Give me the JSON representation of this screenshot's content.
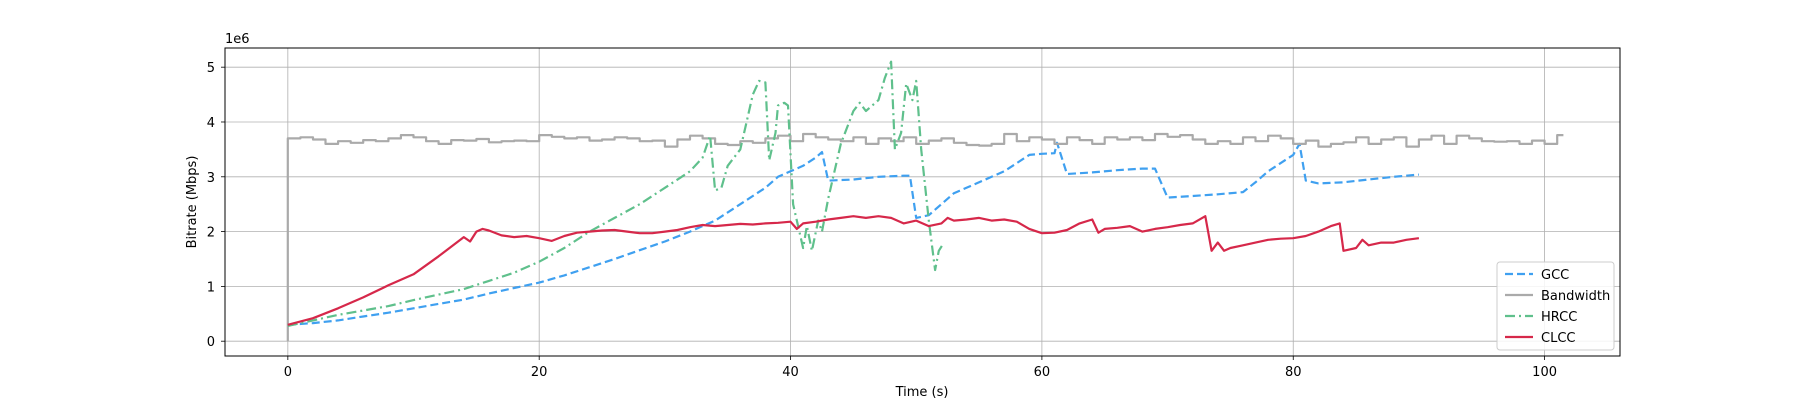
{
  "chart_data": {
    "type": "line",
    "xlabel": "Time (s)",
    "ylabel": "Bitrate (Mbps)",
    "y_multiplier_label": "1e6",
    "xlim": [
      -5,
      106
    ],
    "ylim": [
      -0.27,
      5.35
    ],
    "xticks": [
      0,
      20,
      40,
      60,
      80,
      100
    ],
    "yticks": [
      0,
      1,
      2,
      3,
      4,
      5
    ],
    "xtick_labels": [
      "0",
      "20",
      "40",
      "60",
      "80",
      "100"
    ],
    "ytick_labels": [
      "0",
      "1",
      "2",
      "3",
      "4",
      "5"
    ],
    "grid": true,
    "legend_position": "lower-right",
    "series": [
      {
        "name": "GCC",
        "color": "#3fa0f0",
        "style": "dashed",
        "points": [
          [
            0,
            0.3
          ],
          [
            2,
            0.33
          ],
          [
            4,
            0.38
          ],
          [
            6,
            0.45
          ],
          [
            8,
            0.52
          ],
          [
            10,
            0.6
          ],
          [
            12,
            0.68
          ],
          [
            14,
            0.76
          ],
          [
            16,
            0.87
          ],
          [
            18,
            0.97
          ],
          [
            20,
            1.07
          ],
          [
            22,
            1.2
          ],
          [
            24,
            1.35
          ],
          [
            26,
            1.5
          ],
          [
            28,
            1.66
          ],
          [
            30,
            1.82
          ],
          [
            32,
            2.0
          ],
          [
            34,
            2.2
          ],
          [
            35,
            2.35
          ],
          [
            36,
            2.5
          ],
          [
            37,
            2.65
          ],
          [
            38,
            2.8
          ],
          [
            39,
            3.0
          ],
          [
            40,
            3.1
          ],
          [
            41,
            3.2
          ],
          [
            42,
            3.35
          ],
          [
            42.5,
            3.45
          ],
          [
            43,
            2.93
          ],
          [
            45,
            2.95
          ],
          [
            47,
            3.0
          ],
          [
            49,
            3.02
          ],
          [
            49.5,
            3.02
          ],
          [
            50,
            2.25
          ],
          [
            51,
            2.3
          ],
          [
            52,
            2.5
          ],
          [
            53,
            2.7
          ],
          [
            54,
            2.8
          ],
          [
            55,
            2.9
          ],
          [
            56,
            3.0
          ],
          [
            57,
            3.1
          ],
          [
            58,
            3.25
          ],
          [
            59,
            3.4
          ],
          [
            60,
            3.42
          ],
          [
            61,
            3.43
          ],
          [
            61.2,
            3.62
          ],
          [
            62,
            3.05
          ],
          [
            64,
            3.08
          ],
          [
            66,
            3.12
          ],
          [
            68,
            3.15
          ],
          [
            69,
            3.15
          ],
          [
            70,
            2.62
          ],
          [
            72,
            2.65
          ],
          [
            74,
            2.68
          ],
          [
            76,
            2.72
          ],
          [
            77,
            2.9
          ],
          [
            78,
            3.1
          ],
          [
            79,
            3.25
          ],
          [
            80,
            3.4
          ],
          [
            80.5,
            3.6
          ],
          [
            81,
            2.93
          ],
          [
            82,
            2.88
          ],
          [
            84,
            2.9
          ],
          [
            86,
            2.95
          ],
          [
            88,
            3.0
          ],
          [
            90,
            3.04
          ]
        ]
      },
      {
        "name": "Bandwidth",
        "color": "#aaaaaa",
        "style": "solid",
        "step": true,
        "points": [
          [
            0,
            0
          ],
          [
            0,
            3.7
          ],
          [
            1,
            3.72
          ],
          [
            2,
            3.68
          ],
          [
            3,
            3.6
          ],
          [
            4,
            3.65
          ],
          [
            5,
            3.62
          ],
          [
            6,
            3.67
          ],
          [
            7,
            3.65
          ],
          [
            8,
            3.7
          ],
          [
            9,
            3.76
          ],
          [
            10,
            3.72
          ],
          [
            11,
            3.65
          ],
          [
            12,
            3.6
          ],
          [
            13,
            3.67
          ],
          [
            14,
            3.66
          ],
          [
            15,
            3.69
          ],
          [
            16,
            3.63
          ],
          [
            17,
            3.65
          ],
          [
            18,
            3.66
          ],
          [
            19,
            3.65
          ],
          [
            20,
            3.76
          ],
          [
            21,
            3.73
          ],
          [
            22,
            3.7
          ],
          [
            23,
            3.72
          ],
          [
            24,
            3.66
          ],
          [
            25,
            3.68
          ],
          [
            26,
            3.72
          ],
          [
            27,
            3.7
          ],
          [
            28,
            3.65
          ],
          [
            29,
            3.66
          ],
          [
            30,
            3.55
          ],
          [
            31,
            3.68
          ],
          [
            32,
            3.75
          ],
          [
            33,
            3.7
          ],
          [
            34,
            3.6
          ],
          [
            35,
            3.58
          ],
          [
            36,
            3.65
          ],
          [
            37,
            3.62
          ],
          [
            38,
            3.7
          ],
          [
            39,
            3.75
          ],
          [
            40,
            3.65
          ],
          [
            41,
            3.78
          ],
          [
            42,
            3.72
          ],
          [
            43,
            3.68
          ],
          [
            44,
            3.65
          ],
          [
            45,
            3.72
          ],
          [
            46,
            3.6
          ],
          [
            47,
            3.7
          ],
          [
            48,
            3.65
          ],
          [
            49,
            3.72
          ],
          [
            50,
            3.6
          ],
          [
            51,
            3.66
          ],
          [
            52,
            3.7
          ],
          [
            53,
            3.62
          ],
          [
            54,
            3.58
          ],
          [
            55,
            3.57
          ],
          [
            56,
            3.6
          ],
          [
            57,
            3.78
          ],
          [
            58,
            3.65
          ],
          [
            59,
            3.72
          ],
          [
            60,
            3.68
          ],
          [
            61,
            3.6
          ],
          [
            62,
            3.72
          ],
          [
            63,
            3.67
          ],
          [
            64,
            3.6
          ],
          [
            65,
            3.72
          ],
          [
            66,
            3.68
          ],
          [
            67,
            3.72
          ],
          [
            68,
            3.67
          ],
          [
            69,
            3.78
          ],
          [
            70,
            3.73
          ],
          [
            71,
            3.76
          ],
          [
            72,
            3.68
          ],
          [
            73,
            3.6
          ],
          [
            74,
            3.65
          ],
          [
            75,
            3.6
          ],
          [
            76,
            3.72
          ],
          [
            77,
            3.65
          ],
          [
            78,
            3.75
          ],
          [
            79,
            3.7
          ],
          [
            80,
            3.6
          ],
          [
            81,
            3.66
          ],
          [
            82,
            3.55
          ],
          [
            83,
            3.6
          ],
          [
            84,
            3.63
          ],
          [
            85,
            3.72
          ],
          [
            86,
            3.6
          ],
          [
            87,
            3.68
          ],
          [
            88,
            3.72
          ],
          [
            89,
            3.55
          ],
          [
            90,
            3.68
          ],
          [
            91,
            3.75
          ],
          [
            92,
            3.6
          ],
          [
            93,
            3.75
          ],
          [
            94,
            3.7
          ],
          [
            95,
            3.65
          ],
          [
            96,
            3.64
          ],
          [
            97,
            3.65
          ],
          [
            98,
            3.6
          ],
          [
            99,
            3.66
          ],
          [
            100,
            3.6
          ],
          [
            101,
            3.76
          ],
          [
            101.5,
            3.76
          ]
        ]
      },
      {
        "name": "HRCC",
        "color": "#5fc08c",
        "style": "dashdot",
        "points": [
          [
            0,
            0.28
          ],
          [
            2,
            0.38
          ],
          [
            4,
            0.48
          ],
          [
            6,
            0.56
          ],
          [
            8,
            0.64
          ],
          [
            10,
            0.75
          ],
          [
            12,
            0.85
          ],
          [
            14,
            0.95
          ],
          [
            16,
            1.1
          ],
          [
            18,
            1.25
          ],
          [
            20,
            1.45
          ],
          [
            22,
            1.7
          ],
          [
            24,
            2.0
          ],
          [
            26,
            2.25
          ],
          [
            28,
            2.5
          ],
          [
            30,
            2.8
          ],
          [
            32,
            3.1
          ],
          [
            33,
            3.35
          ],
          [
            33.6,
            3.75
          ],
          [
            34,
            2.75
          ],
          [
            34.5,
            2.8
          ],
          [
            35,
            3.2
          ],
          [
            36,
            3.5
          ],
          [
            36.5,
            4.0
          ],
          [
            37,
            4.5
          ],
          [
            37.5,
            4.75
          ],
          [
            38,
            4.72
          ],
          [
            38.3,
            3.3
          ],
          [
            38.8,
            3.8
          ],
          [
            39,
            4.3
          ],
          [
            39.5,
            4.35
          ],
          [
            39.8,
            4.3
          ],
          [
            40.2,
            2.5
          ],
          [
            41,
            1.7
          ],
          [
            41.3,
            2.1
          ],
          [
            41.7,
            1.65
          ],
          [
            42.2,
            2.2
          ],
          [
            42.5,
            2.0
          ],
          [
            43,
            2.6
          ],
          [
            44,
            3.6
          ],
          [
            45,
            4.2
          ],
          [
            45.5,
            4.35
          ],
          [
            46,
            4.2
          ],
          [
            47,
            4.4
          ],
          [
            47.5,
            4.8
          ],
          [
            48,
            5.1
          ],
          [
            48.3,
            3.5
          ],
          [
            48.8,
            3.8
          ],
          [
            49.2,
            4.7
          ],
          [
            49.7,
            4.4
          ],
          [
            50,
            4.75
          ],
          [
            50.4,
            3.5
          ],
          [
            51,
            2.2
          ],
          [
            51.5,
            1.3
          ],
          [
            51.8,
            1.65
          ],
          [
            52.2,
            1.8
          ]
        ]
      },
      {
        "name": "CLCC",
        "color": "#d6284a",
        "style": "solid",
        "points": [
          [
            0,
            0.3
          ],
          [
            2,
            0.42
          ],
          [
            4,
            0.6
          ],
          [
            6,
            0.8
          ],
          [
            8,
            1.02
          ],
          [
            10,
            1.22
          ],
          [
            12,
            1.55
          ],
          [
            14,
            1.9
          ],
          [
            14.5,
            1.82
          ],
          [
            15,
            2.0
          ],
          [
            15.5,
            2.05
          ],
          [
            16,
            2.02
          ],
          [
            17,
            1.93
          ],
          [
            18,
            1.9
          ],
          [
            19,
            1.92
          ],
          [
            20,
            1.88
          ],
          [
            21,
            1.83
          ],
          [
            22,
            1.92
          ],
          [
            23,
            1.98
          ],
          [
            24,
            2.0
          ],
          [
            25,
            2.02
          ],
          [
            26,
            2.03
          ],
          [
            27,
            2.0
          ],
          [
            28,
            1.97
          ],
          [
            29,
            1.97
          ],
          [
            30,
            2.0
          ],
          [
            31,
            2.03
          ],
          [
            32,
            2.08
          ],
          [
            33,
            2.12
          ],
          [
            34,
            2.1
          ],
          [
            35,
            2.12
          ],
          [
            36,
            2.14
          ],
          [
            37,
            2.13
          ],
          [
            38,
            2.15
          ],
          [
            39,
            2.16
          ],
          [
            40,
            2.18
          ],
          [
            40.5,
            2.05
          ],
          [
            41,
            2.15
          ],
          [
            42,
            2.18
          ],
          [
            43,
            2.22
          ],
          [
            44,
            2.25
          ],
          [
            45,
            2.28
          ],
          [
            46,
            2.25
          ],
          [
            47,
            2.28
          ],
          [
            48,
            2.25
          ],
          [
            49,
            2.15
          ],
          [
            50,
            2.2
          ],
          [
            51,
            2.1
          ],
          [
            52,
            2.15
          ],
          [
            52.5,
            2.25
          ],
          [
            53,
            2.2
          ],
          [
            54,
            2.22
          ],
          [
            55,
            2.25
          ],
          [
            56,
            2.2
          ],
          [
            57,
            2.22
          ],
          [
            58,
            2.18
          ],
          [
            59,
            2.05
          ],
          [
            60,
            1.97
          ],
          [
            61,
            1.98
          ],
          [
            62,
            2.03
          ],
          [
            63,
            2.15
          ],
          [
            64,
            2.22
          ],
          [
            64.5,
            1.98
          ],
          [
            65,
            2.05
          ],
          [
            66,
            2.07
          ],
          [
            67,
            2.1
          ],
          [
            68,
            2.0
          ],
          [
            69,
            2.05
          ],
          [
            70,
            2.08
          ],
          [
            71,
            2.12
          ],
          [
            72,
            2.15
          ],
          [
            73,
            2.28
          ],
          [
            73.5,
            1.65
          ],
          [
            74,
            1.8
          ],
          [
            74.5,
            1.65
          ],
          [
            75,
            1.7
          ],
          [
            76,
            1.75
          ],
          [
            77,
            1.8
          ],
          [
            78,
            1.85
          ],
          [
            79,
            1.87
          ],
          [
            80,
            1.88
          ],
          [
            81,
            1.92
          ],
          [
            82,
            2.0
          ],
          [
            83,
            2.1
          ],
          [
            83.7,
            2.15
          ],
          [
            84,
            1.65
          ],
          [
            85,
            1.7
          ],
          [
            85.5,
            1.85
          ],
          [
            86,
            1.75
          ],
          [
            87,
            1.8
          ],
          [
            88,
            1.8
          ],
          [
            89,
            1.85
          ],
          [
            90,
            1.88
          ]
        ]
      }
    ]
  }
}
